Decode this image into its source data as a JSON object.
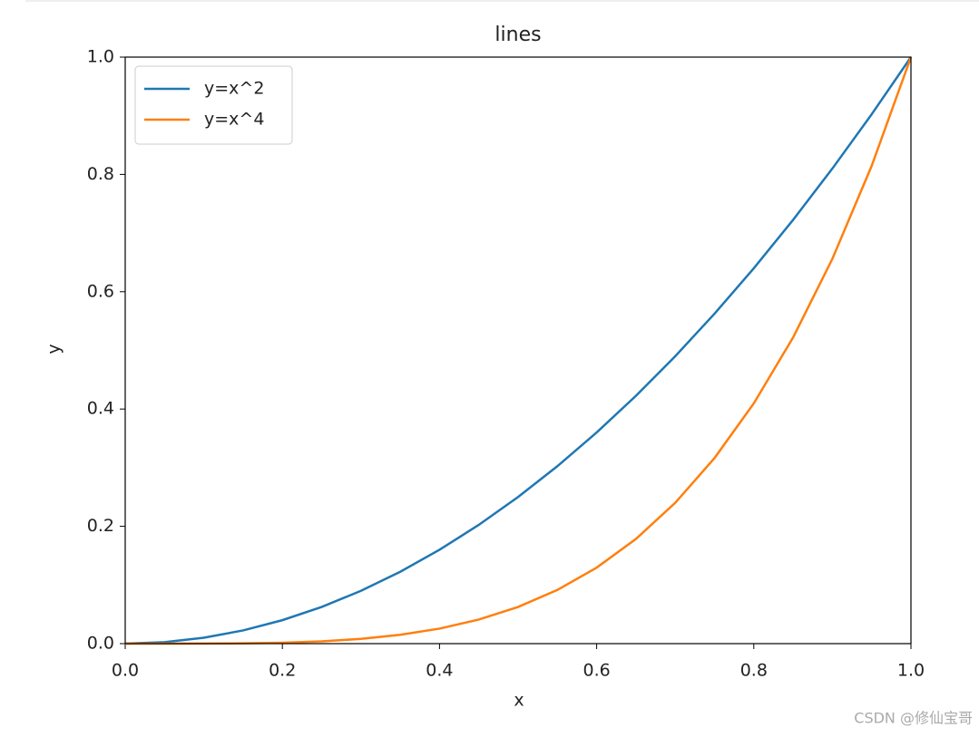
{
  "chart_data": {
    "type": "line",
    "title": "lines",
    "x_label": "x",
    "y_label": "y",
    "x": [
      0,
      0.05,
      0.1,
      0.15,
      0.2,
      0.25,
      0.3,
      0.35,
      0.4,
      0.45,
      0.5,
      0.55,
      0.6,
      0.65,
      0.7,
      0.75,
      0.8,
      0.85,
      0.9,
      0.95,
      1
    ],
    "series": [
      {
        "name": "y=x^2",
        "color": "#1f77b4",
        "values": [
          0,
          0.0025,
          0.01,
          0.0225,
          0.04,
          0.0625,
          0.09,
          0.1225,
          0.16,
          0.2025,
          0.25,
          0.3025,
          0.36,
          0.4225,
          0.49,
          0.5625,
          0.64,
          0.7225,
          0.81,
          0.9025,
          1
        ]
      },
      {
        "name": "y=x^4",
        "color": "#ff7f0e",
        "values": [
          0,
          0,
          0.0001,
          0.0005,
          0.0016,
          0.0039,
          0.0081,
          0.015,
          0.0256,
          0.041,
          0.0625,
          0.0915,
          0.1296,
          0.1785,
          0.2401,
          0.3164,
          0.4096,
          0.522,
          0.6561,
          0.8145,
          1
        ]
      }
    ],
    "xlim": [
      0,
      1
    ],
    "ylim": [
      0,
      1
    ],
    "xticks": [
      {
        "value": 0,
        "label": "0.0"
      },
      0.2,
      0.4,
      0.6,
      0.8,
      {
        "value": 1,
        "label": "1.0"
      }
    ],
    "yticks": [
      {
        "value": 0,
        "label": "0.0"
      },
      0.2,
      0.4,
      0.6,
      0.8,
      {
        "value": 1,
        "label": "1.0"
      }
    ],
    "legend": "upper left",
    "grid": false
  },
  "watermark": "CSDN @修仙宝哥"
}
